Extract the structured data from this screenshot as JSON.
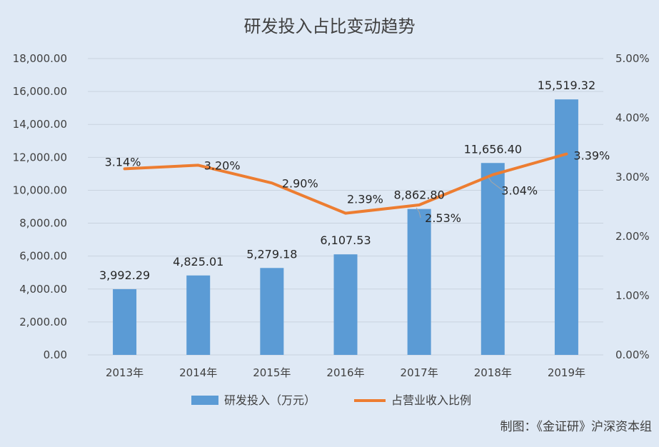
{
  "chart_data": {
    "type": "bar+line",
    "title": "研发投入占比变动趋势",
    "categories": [
      "2013年",
      "2014年",
      "2015年",
      "2016年",
      "2017年",
      "2018年",
      "2019年"
    ],
    "series": [
      {
        "name": "研发投入（万元）",
        "type": "bar",
        "axis": "left",
        "color": "#5b9bd5",
        "values": [
          3992.29,
          4825.01,
          5279.18,
          6107.53,
          8862.8,
          11656.4,
          15519.32
        ],
        "labels": [
          "3,992.29",
          "4,825.01",
          "5,279.18",
          "6,107.53",
          "8,862.80",
          "11,656.40",
          "15,519.32"
        ]
      },
      {
        "name": "占营业收入比例",
        "type": "line",
        "axis": "right",
        "color": "#ed7d31",
        "values": [
          3.14,
          3.2,
          2.9,
          2.39,
          2.53,
          3.04,
          3.39
        ],
        "labels": [
          "3.14%",
          "3.20%",
          "2.90%",
          "2.39%",
          "2.53%",
          "3.04%",
          "3.39%"
        ]
      }
    ],
    "y_left": {
      "ylim": [
        0,
        18000
      ],
      "ticks": [
        "0.00",
        "2,000.00",
        "4,000.00",
        "6,000.00",
        "8,000.00",
        "10,000.00",
        "12,000.00",
        "14,000.00",
        "16,000.00",
        "18,000.00"
      ]
    },
    "y_right": {
      "ylim": [
        0,
        5
      ],
      "ticks": [
        "0.00%",
        "1.00%",
        "2.00%",
        "3.00%",
        "4.00%",
        "5.00%"
      ]
    },
    "grid": true,
    "legend_position": "bottom",
    "credit": "制图：《金证研》沪深资本组"
  }
}
